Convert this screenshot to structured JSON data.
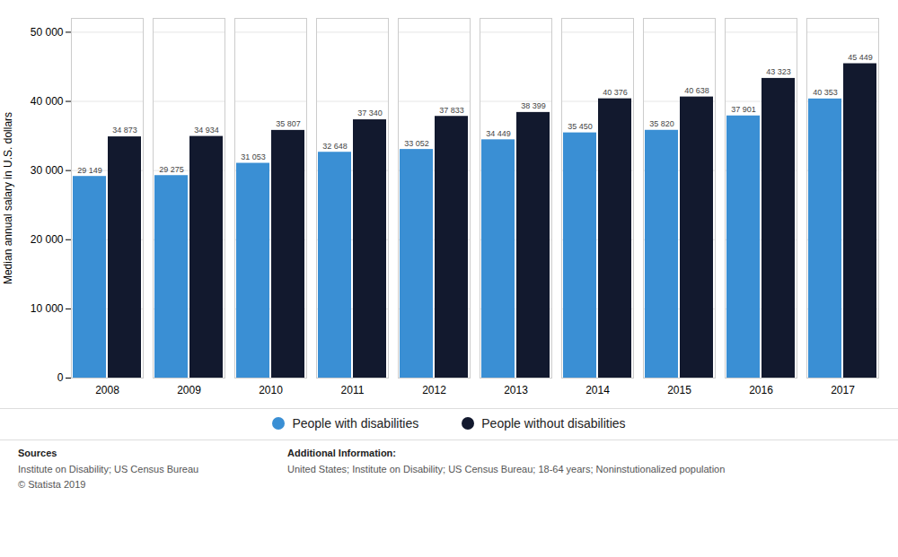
{
  "chart_data": {
    "type": "bar",
    "categories": [
      "2008",
      "2009",
      "2010",
      "2011",
      "2012",
      "2013",
      "2014",
      "2015",
      "2016",
      "2017"
    ],
    "series": [
      {
        "name": "People with disabilities",
        "color": "#3a8fd4",
        "values": [
          29149,
          29275,
          31053,
          32648,
          33052,
          34449,
          35450,
          35820,
          37901,
          40353
        ],
        "value_labels": [
          "29 149",
          "29 275",
          "31 053",
          "32 648",
          "33 052",
          "34 449",
          "35 450",
          "35 820",
          "37 901",
          "40 353"
        ]
      },
      {
        "name": "People without disabilities",
        "color": "#12192e",
        "values": [
          34873,
          34934,
          35807,
          37340,
          37833,
          38399,
          40376,
          40638,
          43323,
          45449
        ],
        "value_labels": [
          "34 873",
          "34 934",
          "35 807",
          "37 340",
          "37 833",
          "38 399",
          "40 376",
          "40 638",
          "43 323",
          "45 449"
        ]
      }
    ],
    "y_label": "Median annual salary in U.S. dollars",
    "ylim": [
      0,
      52000
    ],
    "yticks": [
      0,
      {
        "value": 10000,
        "label": "10 000"
      },
      {
        "value": 20000,
        "label": "20 000"
      },
      {
        "value": 30000,
        "label": "30 000"
      },
      {
        "value": 40000,
        "label": "40 000"
      },
      {
        "value": 50000,
        "label": "50 000"
      }
    ],
    "grid": true,
    "legend": "bottom",
    "data_labels": true,
    "annotations": [
      "Sources",
      "Institute on Disability; US Census Bureau",
      "© Statista 2019",
      "Additional Information:",
      "United States; Institute on Disability; US Census Bureau; 18-64 years; Noninstutionalized population"
    ]
  }
}
